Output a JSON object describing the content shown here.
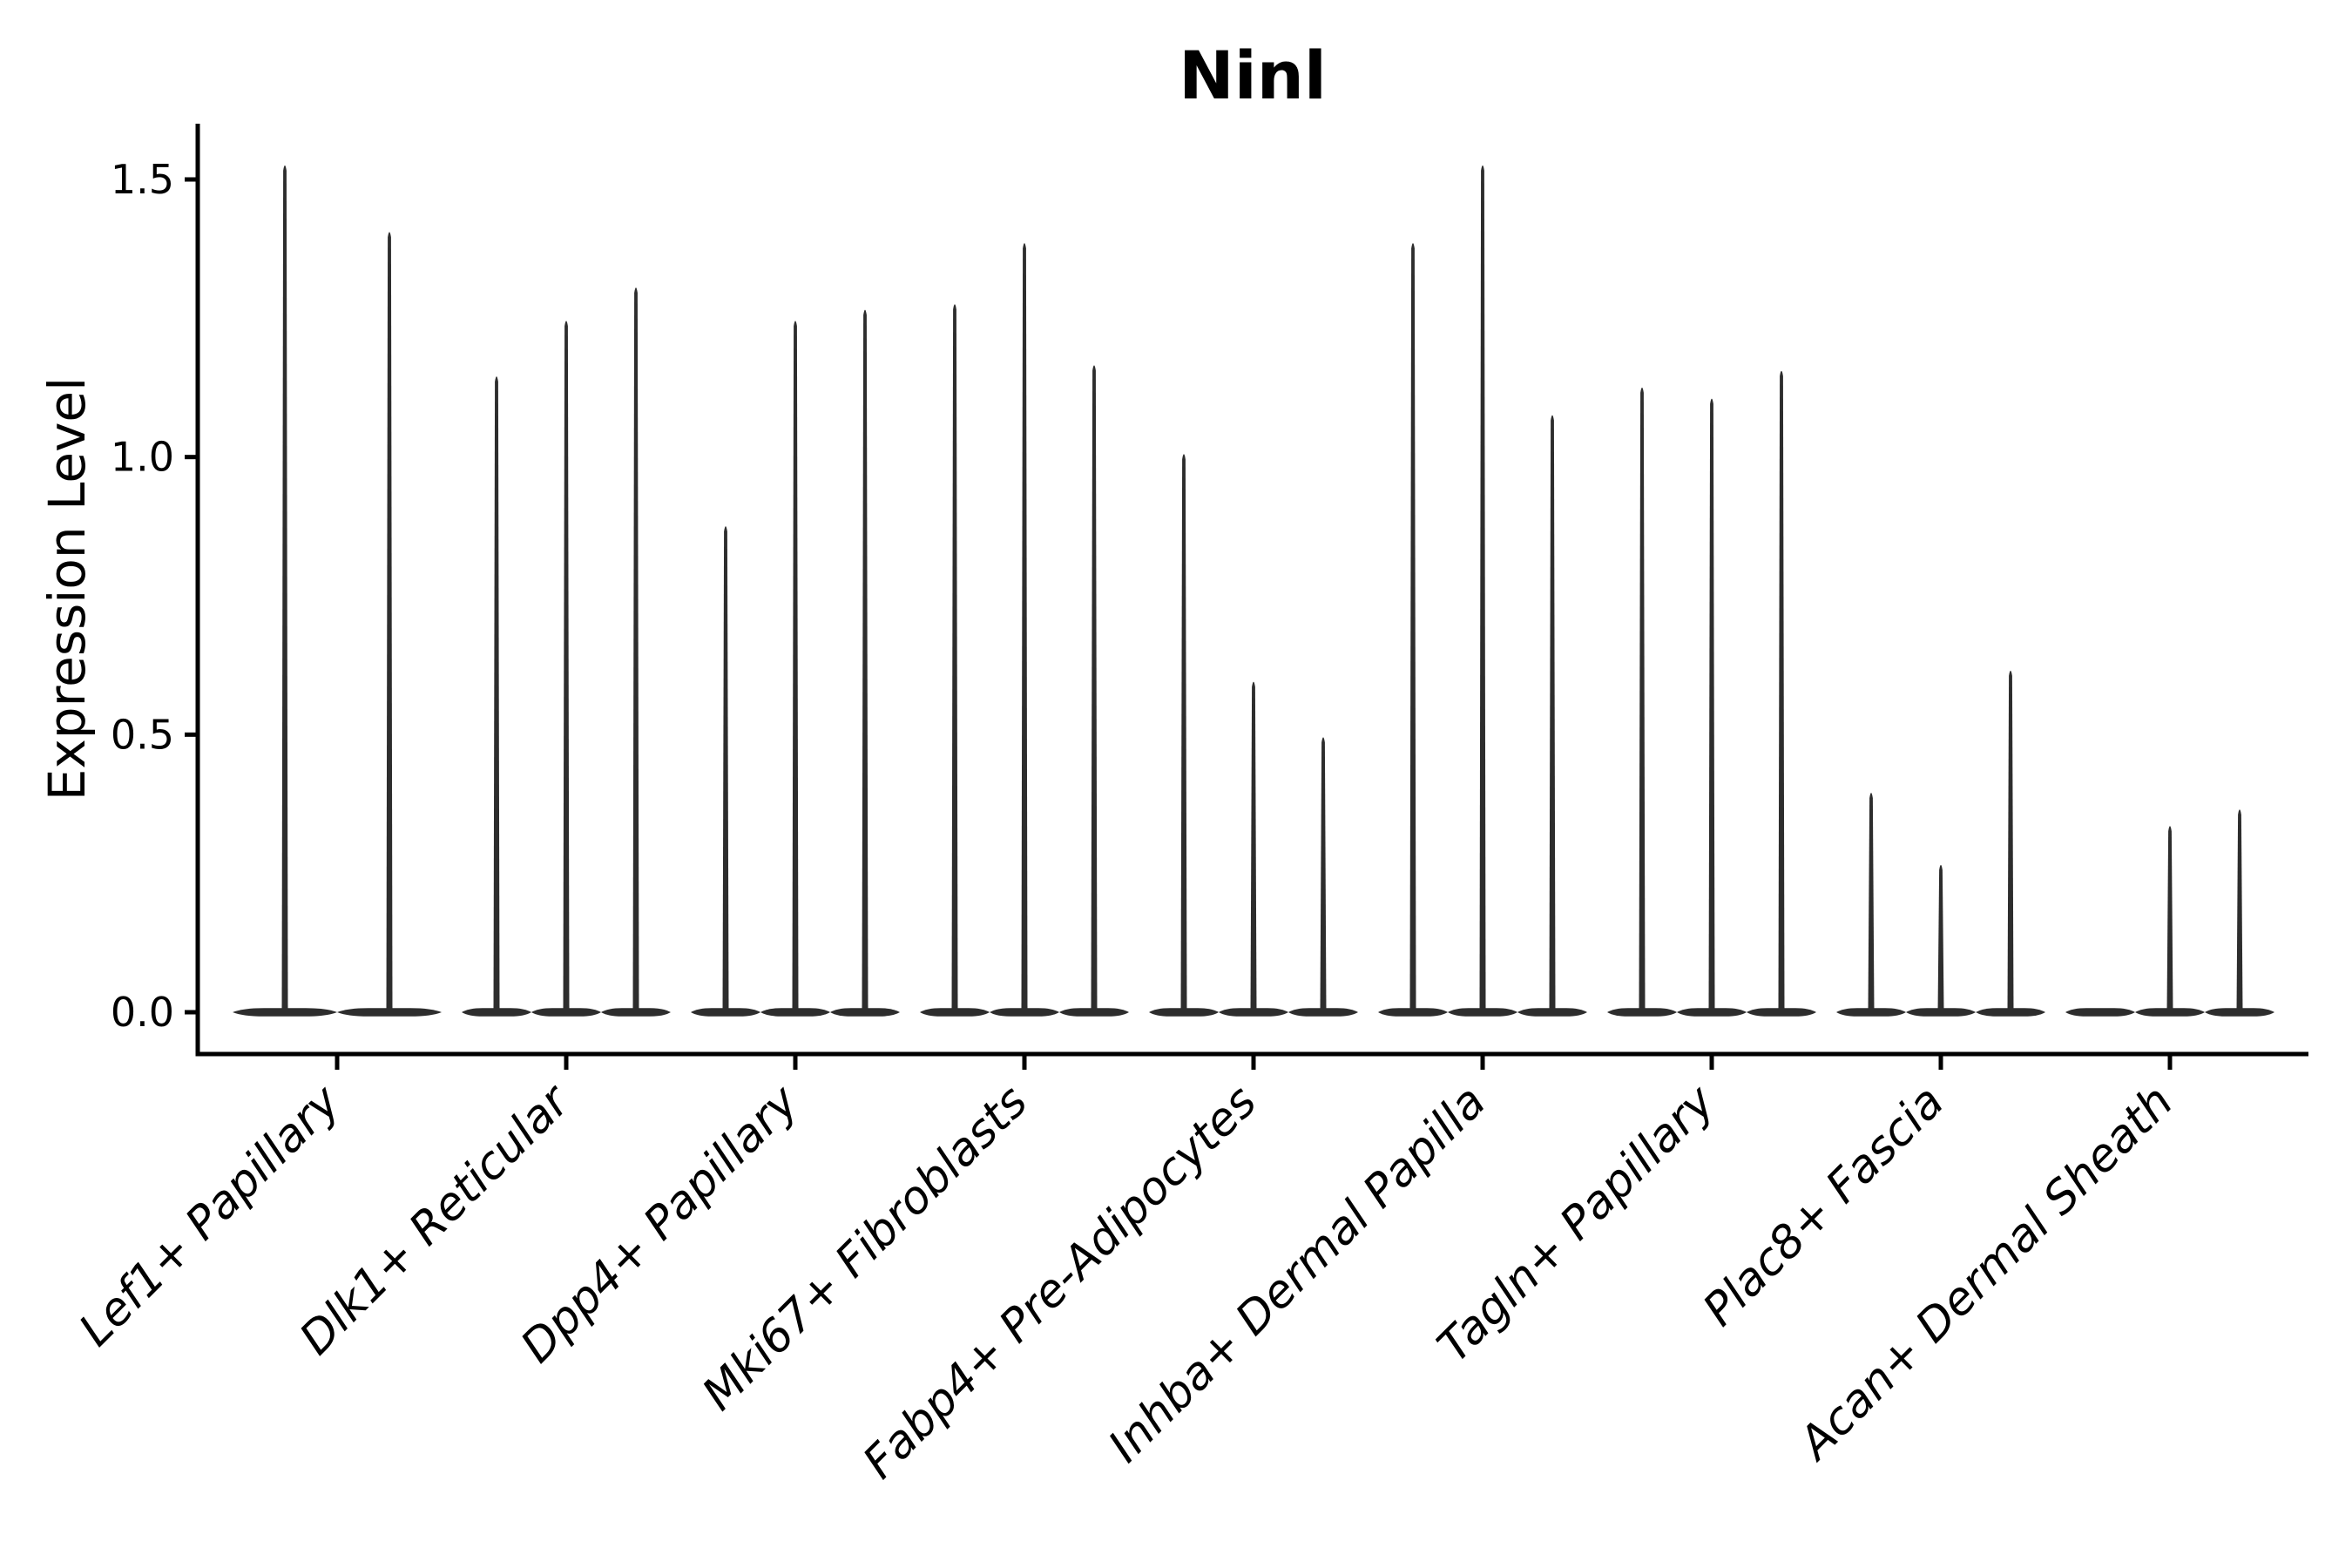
{
  "chart_data": {
    "type": "violin",
    "title": "Ninl",
    "xlabel": "",
    "ylabel": "Expression Level",
    "ylim": [
      -0.075,
      1.6
    ],
    "yticks": [
      0.0,
      0.5,
      1.0,
      1.5
    ],
    "ytick_labels": [
      "0.0",
      "0.5",
      "1.0",
      "1.5"
    ],
    "x_tick_label_rotation": 45,
    "grid": false,
    "legend": "none",
    "categories": [
      {
        "label": "Lef1+ Papillary",
        "violins": [
          1.53,
          1.41
        ]
      },
      {
        "label": "Dlk1+ Reticular",
        "violins": [
          1.15,
          1.25,
          1.31
        ]
      },
      {
        "label": "Dpp4+ Papillary",
        "violins": [
          0.88,
          1.25,
          1.27
        ]
      },
      {
        "label": "Mki67+ Fibroblasts",
        "violins": [
          1.28,
          1.39,
          1.17
        ]
      },
      {
        "label": "Fabp4+ Pre-Adipocytes",
        "violins": [
          1.01,
          0.6,
          0.5
        ]
      },
      {
        "label": "Inhba+ Dermal Papilla",
        "violins": [
          1.39,
          1.53,
          1.08
        ]
      },
      {
        "label": "Tagln+ Papillary",
        "violins": [
          1.13,
          1.11,
          1.16
        ]
      },
      {
        "label": "Plac8+ Fascia",
        "violins": [
          0.4,
          0.27,
          0.62
        ]
      },
      {
        "label": "Acan+ Dermal Sheath",
        "violins": [
          0.0,
          0.34,
          0.37
        ]
      }
    ],
    "colors": {
      "violin": "#2d2d2d",
      "axis": "#000000",
      "text": "#000000",
      "background": "#ffffff"
    }
  }
}
